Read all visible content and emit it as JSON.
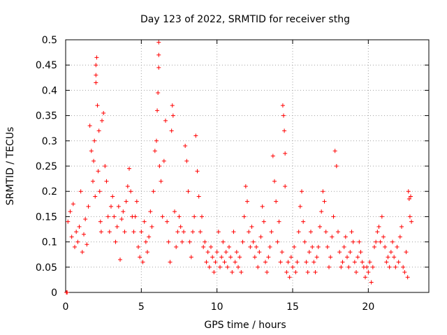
{
  "chart_data": {
    "type": "scatter",
    "title": "Day 123 of 2022, SRMTID for receiver sthg",
    "xlabel": "GPS time / hours",
    "ylabel": "SRMTID / TECUs",
    "xlim": [
      0,
      24
    ],
    "ylim": [
      0,
      0.5
    ],
    "xticks": [
      0,
      5,
      10,
      15,
      20
    ],
    "xtick_labels": [
      "0",
      "5",
      "10",
      "15",
      "20"
    ],
    "yticks": [
      0,
      0.05,
      0.1,
      0.15,
      0.2,
      0.25,
      0.3,
      0.35,
      0.4,
      0.45,
      0.5
    ],
    "ytick_labels": [
      "0",
      "0.05",
      "0.1",
      "0.15",
      "0.2",
      "0.25",
      "0.3",
      "0.35",
      "0.4",
      "0.45",
      "0.5"
    ],
    "grid": true,
    "marker": "plus",
    "series": [
      {
        "name": "sthg",
        "color": "#ff0000",
        "points": [
          [
            0.05,
            0.0
          ],
          [
            0.1,
            0.0
          ],
          [
            0.15,
            0.14
          ],
          [
            0.3,
            0.16
          ],
          [
            0.4,
            0.11
          ],
          [
            0.5,
            0.175
          ],
          [
            0.6,
            0.09
          ],
          [
            0.7,
            0.12
          ],
          [
            0.8,
            0.1
          ],
          [
            0.9,
            0.13
          ],
          [
            1.0,
            0.2
          ],
          [
            1.1,
            0.08
          ],
          [
            1.2,
            0.115
          ],
          [
            1.3,
            0.145
          ],
          [
            1.4,
            0.095
          ],
          [
            1.5,
            0.17
          ],
          [
            1.6,
            0.33
          ],
          [
            1.7,
            0.28
          ],
          [
            1.8,
            0.22
          ],
          [
            1.85,
            0.26
          ],
          [
            1.9,
            0.3
          ],
          [
            1.95,
            0.19
          ],
          [
            2.0,
            0.415
          ],
          [
            2.0,
            0.43
          ],
          [
            2.0,
            0.45
          ],
          [
            2.05,
            0.465
          ],
          [
            2.1,
            0.37
          ],
          [
            2.15,
            0.24
          ],
          [
            2.2,
            0.32
          ],
          [
            2.25,
            0.2
          ],
          [
            2.3,
            0.14
          ],
          [
            2.35,
            0.12
          ],
          [
            2.4,
            0.34
          ],
          [
            2.5,
            0.355
          ],
          [
            2.6,
            0.25
          ],
          [
            2.7,
            0.22
          ],
          [
            2.8,
            0.15
          ],
          [
            2.9,
            0.12
          ],
          [
            3.0,
            0.17
          ],
          [
            3.1,
            0.19
          ],
          [
            3.2,
            0.15
          ],
          [
            3.3,
            0.1
          ],
          [
            3.4,
            0.13
          ],
          [
            3.5,
            0.17
          ],
          [
            3.6,
            0.065
          ],
          [
            3.7,
            0.145
          ],
          [
            3.8,
            0.16
          ],
          [
            3.9,
            0.12
          ],
          [
            4.0,
            0.18
          ],
          [
            4.1,
            0.21
          ],
          [
            4.2,
            0.245
          ],
          [
            4.3,
            0.2
          ],
          [
            4.4,
            0.15
          ],
          [
            4.5,
            0.12
          ],
          [
            4.6,
            0.15
          ],
          [
            4.7,
            0.18
          ],
          [
            4.8,
            0.09
          ],
          [
            4.9,
            0.07
          ],
          [
            5.0,
            0.12
          ],
          [
            5.1,
            0.06
          ],
          [
            5.2,
            0.14
          ],
          [
            5.3,
            0.1
          ],
          [
            5.4,
            0.08
          ],
          [
            5.5,
            0.11
          ],
          [
            5.6,
            0.16
          ],
          [
            5.7,
            0.13
          ],
          [
            5.8,
            0.2
          ],
          [
            5.9,
            0.28
          ],
          [
            6.0,
            0.3
          ],
          [
            6.05,
            0.36
          ],
          [
            6.1,
            0.395
          ],
          [
            6.15,
            0.445
          ],
          [
            6.15,
            0.47
          ],
          [
            6.15,
            0.495
          ],
          [
            6.2,
            0.25
          ],
          [
            6.3,
            0.22
          ],
          [
            6.4,
            0.15
          ],
          [
            6.5,
            0.26
          ],
          [
            6.6,
            0.34
          ],
          [
            6.7,
            0.14
          ],
          [
            6.8,
            0.1
          ],
          [
            6.9,
            0.06
          ],
          [
            7.0,
            0.32
          ],
          [
            7.05,
            0.37
          ],
          [
            7.1,
            0.35
          ],
          [
            7.2,
            0.16
          ],
          [
            7.3,
            0.09
          ],
          [
            7.4,
            0.12
          ],
          [
            7.5,
            0.15
          ],
          [
            7.6,
            0.13
          ],
          [
            7.7,
            0.1
          ],
          [
            7.8,
            0.12
          ],
          [
            7.9,
            0.29
          ],
          [
            8.0,
            0.26
          ],
          [
            8.1,
            0.2
          ],
          [
            8.2,
            0.1
          ],
          [
            8.3,
            0.07
          ],
          [
            8.4,
            0.12
          ],
          [
            8.5,
            0.15
          ],
          [
            8.6,
            0.31
          ],
          [
            8.7,
            0.24
          ],
          [
            8.8,
            0.19
          ],
          [
            8.9,
            0.12
          ],
          [
            9.0,
            0.15
          ],
          [
            9.1,
            0.09
          ],
          [
            9.2,
            0.1
          ],
          [
            9.3,
            0.06
          ],
          [
            9.4,
            0.08
          ],
          [
            9.5,
            0.05
          ],
          [
            9.6,
            0.09
          ],
          [
            9.7,
            0.07
          ],
          [
            9.8,
            0.04
          ],
          [
            9.9,
            0.06
          ],
          [
            10.0,
            0.08
          ],
          [
            10.1,
            0.12
          ],
          [
            10.2,
            0.05
          ],
          [
            10.3,
            0.07
          ],
          [
            10.4,
            0.1
          ],
          [
            10.5,
            0.06
          ],
          [
            10.6,
            0.08
          ],
          [
            10.7,
            0.05
          ],
          [
            10.8,
            0.09
          ],
          [
            10.9,
            0.07
          ],
          [
            11.0,
            0.04
          ],
          [
            11.1,
            0.12
          ],
          [
            11.2,
            0.06
          ],
          [
            11.3,
            0.08
          ],
          [
            11.4,
            0.05
          ],
          [
            11.5,
            0.07
          ],
          [
            11.6,
            0.04
          ],
          [
            11.7,
            0.1
          ],
          [
            11.8,
            0.15
          ],
          [
            11.9,
            0.21
          ],
          [
            12.0,
            0.18
          ],
          [
            12.1,
            0.12
          ],
          [
            12.2,
            0.09
          ],
          [
            12.3,
            0.13
          ],
          [
            12.4,
            0.1
          ],
          [
            12.5,
            0.07
          ],
          [
            12.6,
            0.09
          ],
          [
            12.7,
            0.05
          ],
          [
            12.8,
            0.08
          ],
          [
            12.9,
            0.11
          ],
          [
            13.0,
            0.17
          ],
          [
            13.1,
            0.14
          ],
          [
            13.2,
            0.06
          ],
          [
            13.3,
            0.04
          ],
          [
            13.4,
            0.07
          ],
          [
            13.5,
            0.09
          ],
          [
            13.6,
            0.12
          ],
          [
            13.7,
            0.27
          ],
          [
            13.8,
            0.22
          ],
          [
            13.9,
            0.18
          ],
          [
            14.0,
            0.1
          ],
          [
            14.1,
            0.14
          ],
          [
            14.2,
            0.06
          ],
          [
            14.3,
            0.08
          ],
          [
            14.35,
            0.37
          ],
          [
            14.4,
            0.35
          ],
          [
            14.45,
            0.32
          ],
          [
            14.5,
            0.275
          ],
          [
            14.5,
            0.21
          ],
          [
            14.6,
            0.04
          ],
          [
            14.7,
            0.06
          ],
          [
            14.8,
            0.03
          ],
          [
            14.9,
            0.07
          ],
          [
            15.0,
            0.05
          ],
          [
            15.1,
            0.09
          ],
          [
            15.2,
            0.04
          ],
          [
            15.3,
            0.06
          ],
          [
            15.4,
            0.12
          ],
          [
            15.5,
            0.17
          ],
          [
            15.6,
            0.2
          ],
          [
            15.7,
            0.14
          ],
          [
            15.8,
            0.1
          ],
          [
            15.9,
            0.06
          ],
          [
            16.0,
            0.04
          ],
          [
            16.1,
            0.08
          ],
          [
            16.2,
            0.12
          ],
          [
            16.3,
            0.09
          ],
          [
            16.4,
            0.06
          ],
          [
            16.5,
            0.04
          ],
          [
            16.6,
            0.07
          ],
          [
            16.7,
            0.09
          ],
          [
            16.8,
            0.13
          ],
          [
            16.9,
            0.16
          ],
          [
            17.0,
            0.2
          ],
          [
            17.1,
            0.18
          ],
          [
            17.2,
            0.12
          ],
          [
            17.3,
            0.09
          ],
          [
            17.4,
            0.05
          ],
          [
            17.5,
            0.07
          ],
          [
            17.6,
            0.11
          ],
          [
            17.7,
            0.15
          ],
          [
            17.8,
            0.28
          ],
          [
            17.9,
            0.25
          ],
          [
            18.0,
            0.12
          ],
          [
            18.1,
            0.08
          ],
          [
            18.2,
            0.05
          ],
          [
            18.3,
            0.06
          ],
          [
            18.4,
            0.09
          ],
          [
            18.5,
            0.11
          ],
          [
            18.6,
            0.07
          ],
          [
            18.7,
            0.05
          ],
          [
            18.8,
            0.08
          ],
          [
            18.9,
            0.12
          ],
          [
            19.0,
            0.1
          ],
          [
            19.1,
            0.06
          ],
          [
            19.2,
            0.04
          ],
          [
            19.3,
            0.07
          ],
          [
            19.4,
            0.1
          ],
          [
            19.5,
            0.08
          ],
          [
            19.6,
            0.06
          ],
          [
            19.7,
            0.05
          ],
          [
            19.8,
            0.03
          ],
          [
            19.9,
            0.05
          ],
          [
            20.0,
            0.04
          ],
          [
            20.1,
            0.06
          ],
          [
            20.2,
            0.02
          ],
          [
            20.3,
            0.05
          ],
          [
            20.4,
            0.09
          ],
          [
            20.5,
            0.1
          ],
          [
            20.6,
            0.12
          ],
          [
            20.7,
            0.13
          ],
          [
            20.8,
            0.1
          ],
          [
            20.9,
            0.15
          ],
          [
            21.0,
            0.11
          ],
          [
            21.1,
            0.09
          ],
          [
            21.2,
            0.06
          ],
          [
            21.3,
            0.07
          ],
          [
            21.4,
            0.05
          ],
          [
            21.5,
            0.08
          ],
          [
            21.6,
            0.1
          ],
          [
            21.7,
            0.07
          ],
          [
            21.8,
            0.05
          ],
          [
            21.9,
            0.09
          ],
          [
            22.0,
            0.06
          ],
          [
            22.1,
            0.11
          ],
          [
            22.2,
            0.13
          ],
          [
            22.3,
            0.05
          ],
          [
            22.4,
            0.04
          ],
          [
            22.5,
            0.08
          ],
          [
            22.6,
            0.03
          ],
          [
            22.65,
            0.2
          ],
          [
            22.7,
            0.185
          ],
          [
            22.75,
            0.15
          ],
          [
            22.8,
            0.19
          ],
          [
            22.85,
            0.14
          ]
        ]
      }
    ]
  }
}
